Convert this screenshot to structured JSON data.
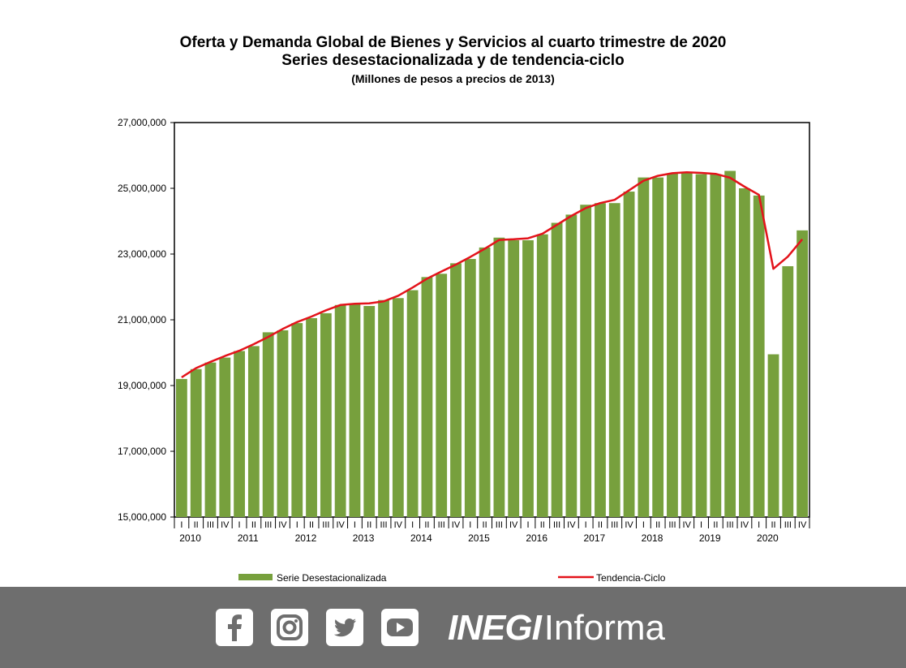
{
  "title": {
    "line1": "Oferta y Demanda Global de Bienes y Servicios al cuarto trimestre de 2020",
    "line2": "Series desestacionalizada y de tendencia-ciclo",
    "line3": "(Millones  de pesos  a precios de 2013)"
  },
  "colors": {
    "bars": "#77a03d",
    "trend": "#e3131b",
    "footer": "#6e6e6e"
  },
  "chart_data": {
    "type": "bar",
    "ylim": [
      15000000,
      27000000
    ],
    "yticks": [
      "15,000,000",
      "17,000,000",
      "19,000,000",
      "21,000,000",
      "23,000,000",
      "25,000,000",
      "27,000,000"
    ],
    "ytick_values": [
      15000000,
      17000000,
      19000000,
      21000000,
      23000000,
      25000000,
      27000000
    ],
    "quarter_labels": [
      "I",
      "II",
      "III",
      "IV",
      "I",
      "II",
      "III",
      "IV",
      "I",
      "II",
      "III",
      "IV",
      "I",
      "II",
      "III",
      "IV",
      "I",
      "II",
      "III",
      "IV",
      "I",
      "II",
      "III",
      "IV",
      "I",
      "II",
      "III",
      "IV",
      "I",
      "II",
      "III",
      "IV",
      "I",
      "II",
      "III",
      "IV",
      "I",
      "II",
      "III",
      "IV",
      "I",
      "II",
      "III",
      "IV"
    ],
    "years": [
      "2010",
      "2011",
      "2012",
      "2013",
      "2014",
      "2015",
      "2016",
      "2017",
      "2018",
      "2019",
      "2020"
    ],
    "grid": false,
    "legend_position": "bottom",
    "series": [
      {
        "name": "Serie Desestacionalizada",
        "type": "bar",
        "values": [
          19200000,
          19500000,
          19700000,
          19850000,
          20050000,
          20200000,
          20620000,
          20680000,
          20900000,
          21050000,
          21200000,
          21450000,
          21480000,
          21420000,
          21600000,
          21660000,
          21900000,
          22300000,
          22400000,
          22720000,
          22850000,
          23200000,
          23500000,
          23420000,
          23420000,
          23600000,
          23950000,
          24200000,
          24500000,
          24550000,
          24550000,
          24900000,
          25330000,
          25330000,
          25450000,
          25480000,
          25430000,
          25430000,
          25530000,
          25000000,
          24780000,
          19950000,
          22630000,
          23720000
        ]
      },
      {
        "name": "Tendencia-Ciclo",
        "type": "line",
        "values": [
          19250000,
          19530000,
          19720000,
          19900000,
          20060000,
          20260000,
          20480000,
          20720000,
          20930000,
          21100000,
          21290000,
          21450000,
          21490000,
          21500000,
          21560000,
          21730000,
          21980000,
          22250000,
          22470000,
          22680000,
          22910000,
          23160000,
          23430000,
          23450000,
          23480000,
          23620000,
          23890000,
          24160000,
          24400000,
          24550000,
          24650000,
          24940000,
          25230000,
          25380000,
          25460000,
          25490000,
          25470000,
          25440000,
          25320000,
          25050000,
          24800000,
          22550000,
          22920000,
          23450000
        ]
      }
    ]
  }
}
